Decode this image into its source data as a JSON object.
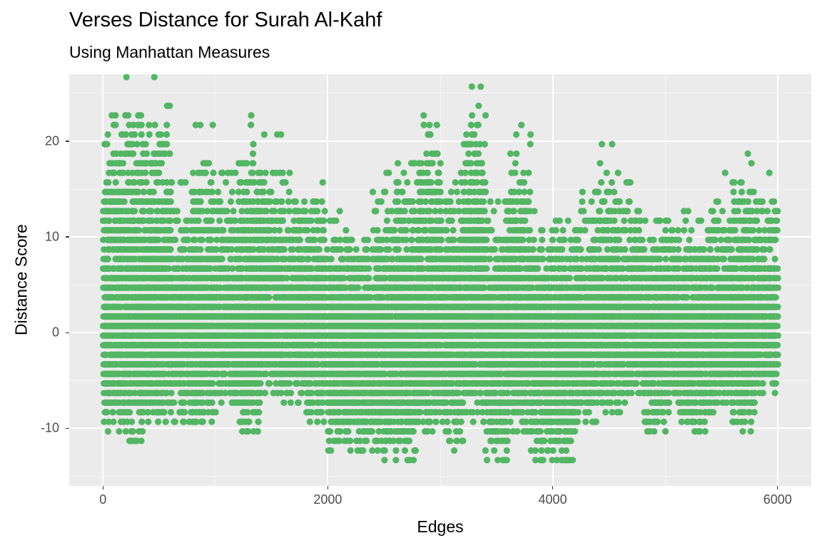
{
  "title": "Verses Distance for Surah Al-Kahf",
  "subtitle": "Using Manhattan Measures",
  "xlabel": "Edges",
  "ylabel": "Distance Score",
  "point_color": "#52B663",
  "panel_bg": "#EBEBEB",
  "x_ticks": [
    {
      "value": 0,
      "label": "0"
    },
    {
      "value": 2000,
      "label": "2000"
    },
    {
      "value": 4000,
      "label": "4000"
    },
    {
      "value": 6000,
      "label": "6000"
    }
  ],
  "y_ticks": [
    {
      "value": -10,
      "label": "-10"
    },
    {
      "value": 0,
      "label": "0"
    },
    {
      "value": 10,
      "label": "10"
    },
    {
      "value": 20,
      "label": "20"
    }
  ],
  "chart_data": {
    "type": "scatter",
    "title": "Verses Distance for Surah Al-Kahf",
    "subtitle": "Using Manhattan Measures",
    "xlabel": "Edges",
    "ylabel": "Distance Score",
    "xlim": [
      -300,
      6300
    ],
    "ylim": [
      -16,
      27
    ],
    "x_ticks": [
      0,
      2000,
      4000,
      6000
    ],
    "y_ticks": [
      -10,
      0,
      10,
      20
    ],
    "grid": true,
    "legend": "none",
    "n_points_approx": 6000,
    "y_levels_step": 1,
    "note": "Points lie on discrete y levels; envelope per 200-edge bucket estimated from the image",
    "buckets": [
      {
        "x_start": 0,
        "x_end": 200,
        "max": 25,
        "min": -11
      },
      {
        "x_start": 200,
        "x_end": 400,
        "max": 26,
        "min": -12
      },
      {
        "x_start": 400,
        "x_end": 600,
        "max": 26,
        "min": -10
      },
      {
        "x_start": 600,
        "x_end": 800,
        "max": 15,
        "min": -10
      },
      {
        "x_start": 800,
        "x_end": 1000,
        "max": 21,
        "min": -10
      },
      {
        "x_start": 1000,
        "x_end": 1200,
        "max": 16,
        "min": -8
      },
      {
        "x_start": 1200,
        "x_end": 1400,
        "max": 22,
        "min": -11
      },
      {
        "x_start": 1400,
        "x_end": 1600,
        "max": 20,
        "min": -7
      },
      {
        "x_start": 1600,
        "x_end": 1800,
        "max": 16,
        "min": -8
      },
      {
        "x_start": 1800,
        "x_end": 2000,
        "max": 15,
        "min": -10
      },
      {
        "x_start": 2000,
        "x_end": 2200,
        "max": 13,
        "min": -13
      },
      {
        "x_start": 2200,
        "x_end": 2400,
        "max": 11,
        "min": -13
      },
      {
        "x_start": 2400,
        "x_end": 2600,
        "max": 16,
        "min": -14
      },
      {
        "x_start": 2600,
        "x_end": 2800,
        "max": 18,
        "min": -14
      },
      {
        "x_start": 2800,
        "x_end": 3000,
        "max": 22,
        "min": -11
      },
      {
        "x_start": 3000,
        "x_end": 3200,
        "max": 17,
        "min": -13
      },
      {
        "x_start": 3200,
        "x_end": 3400,
        "max": 25,
        "min": -10
      },
      {
        "x_start": 3400,
        "x_end": 3600,
        "max": 13,
        "min": -14
      },
      {
        "x_start": 3600,
        "x_end": 3800,
        "max": 21,
        "min": -11
      },
      {
        "x_start": 3800,
        "x_end": 4000,
        "max": 12,
        "min": -14
      },
      {
        "x_start": 4000,
        "x_end": 4200,
        "max": 12,
        "min": -14
      },
      {
        "x_start": 4200,
        "x_end": 4400,
        "max": 14,
        "min": -10
      },
      {
        "x_start": 4400,
        "x_end": 4600,
        "max": 19,
        "min": -9
      },
      {
        "x_start": 4600,
        "x_end": 4800,
        "max": 15,
        "min": -8
      },
      {
        "x_start": 4800,
        "x_end": 5000,
        "max": 11,
        "min": -11
      },
      {
        "x_start": 5000,
        "x_end": 5200,
        "max": 13,
        "min": -10
      },
      {
        "x_start": 5200,
        "x_end": 5400,
        "max": 12,
        "min": -11
      },
      {
        "x_start": 5400,
        "x_end": 5600,
        "max": 16,
        "min": -9
      },
      {
        "x_start": 5600,
        "x_end": 5800,
        "max": 18,
        "min": -11
      },
      {
        "x_start": 5800,
        "x_end": 6000,
        "max": 16,
        "min": -7
      }
    ]
  }
}
